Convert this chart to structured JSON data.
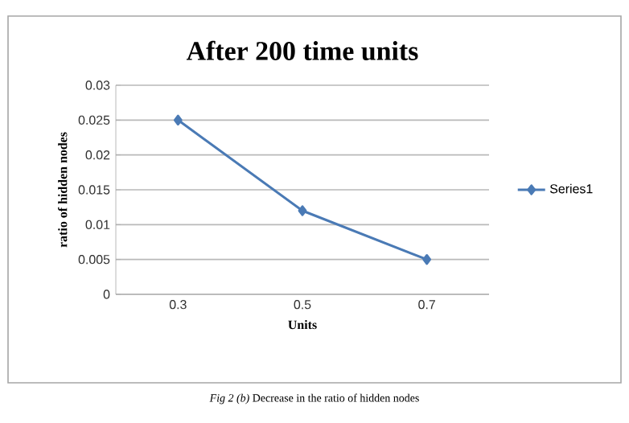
{
  "chart_data": {
    "type": "line",
    "title": "After 200 time units",
    "xlabel": "Units",
    "ylabel": "ratio of hidden nodes",
    "categories": [
      "0.3",
      "0.5",
      "0.7"
    ],
    "series": [
      {
        "name": "Series1",
        "color": "#4a7ab5",
        "values": [
          0.025,
          0.012,
          0.005
        ]
      }
    ],
    "ylim": [
      0,
      0.03
    ],
    "yticks": [
      0,
      0.005,
      0.01,
      0.015,
      0.02,
      0.025,
      0.03
    ],
    "grid": "y",
    "legend": "right",
    "marker": "diamond",
    "line_style": "solid",
    "annotations": [
      "*Fig 2 (b)* Decrease in the ratio of hidden nodes"
    ]
  }
}
